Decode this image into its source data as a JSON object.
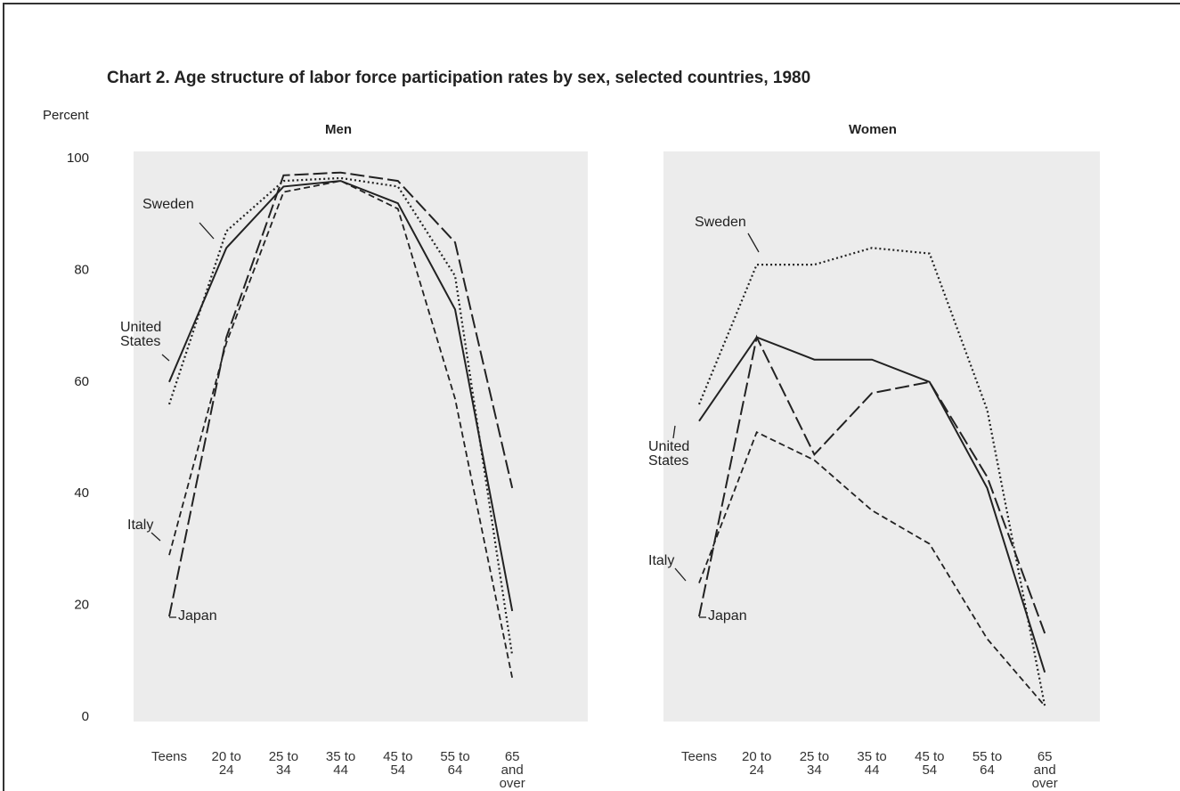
{
  "title": "Chart 2. Age structure of labor force participation rates by sex, selected countries, 1980",
  "chart_data": [
    {
      "type": "line",
      "title": "Men",
      "ylabel": "Percent",
      "categories": [
        "Teens",
        "20 to 24",
        "25 to 34",
        "35 to 44",
        "45 to 54",
        "55 to 64",
        "65 and over"
      ],
      "ylim": [
        0,
        100
      ],
      "yticks": [
        0,
        20,
        40,
        60,
        80,
        100
      ],
      "grid": false,
      "series": [
        {
          "name": "Sweden",
          "color": "#222222",
          "line_style": "dotted",
          "values": [
            56,
            87,
            96,
            96.5,
            95,
            79,
            11
          ]
        },
        {
          "name": "United States",
          "color": "#222222",
          "line_style": "solid",
          "values": [
            60,
            84,
            95,
            96,
            92,
            73,
            19
          ]
        },
        {
          "name": "Italy",
          "color": "#222222",
          "line_style": "short-dash",
          "values": [
            29,
            67,
            94,
            96,
            91,
            57,
            7
          ]
        },
        {
          "name": "Japan",
          "color": "#222222",
          "line_style": "long-dash",
          "values": [
            18,
            68,
            97,
            97.5,
            96,
            85,
            41
          ]
        }
      ]
    },
    {
      "type": "line",
      "title": "Women",
      "categories": [
        "Teens",
        "20 to 24",
        "25 to 34",
        "35 to 44",
        "45 to 54",
        "55 to 64",
        "65 and over"
      ],
      "ylim": [
        0,
        100
      ],
      "grid": false,
      "series": [
        {
          "name": "Sweden",
          "color": "#222222",
          "line_style": "dotted",
          "values": [
            56,
            81,
            81,
            84,
            83,
            55,
            2
          ]
        },
        {
          "name": "United States",
          "color": "#222222",
          "line_style": "solid",
          "values": [
            53,
            68,
            64,
            64,
            60,
            41,
            8
          ]
        },
        {
          "name": "Italy",
          "color": "#222222",
          "line_style": "short-dash",
          "values": [
            24,
            51,
            46,
            37,
            31,
            14,
            2
          ]
        },
        {
          "name": "Japan",
          "color": "#222222",
          "line_style": "long-dash",
          "values": [
            18,
            68,
            47,
            58,
            60,
            43,
            15
          ]
        }
      ]
    }
  ]
}
